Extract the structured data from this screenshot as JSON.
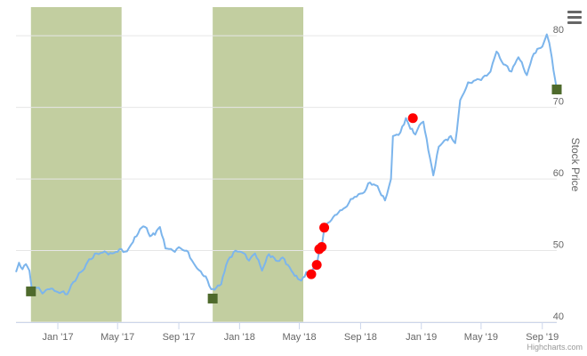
{
  "chart_data": {
    "type": "line",
    "title": "",
    "xlabel": "",
    "ylabel": "Stock Price",
    "yaxis_position": "right",
    "ylim": [
      40,
      84
    ],
    "y_ticks": [
      40,
      50,
      60,
      70,
      80
    ],
    "x_range": [
      "2016-10-09",
      "2019-09-30"
    ],
    "x_ticks": [
      {
        "date": "2017-01-01",
        "label": "Jan '17"
      },
      {
        "date": "2017-05-01",
        "label": "May '17"
      },
      {
        "date": "2017-09-01",
        "label": "Sep '17"
      },
      {
        "date": "2018-01-01",
        "label": "Jan '18"
      },
      {
        "date": "2018-05-01",
        "label": "May '18"
      },
      {
        "date": "2018-09-01",
        "label": "Sep '18"
      },
      {
        "date": "2019-01-01",
        "label": "Jan '19"
      },
      {
        "date": "2019-05-01",
        "label": "May '19"
      },
      {
        "date": "2019-09-01",
        "label": "Sep '19"
      }
    ],
    "grid": true,
    "shaded_periods": [
      {
        "from": "2016-11-08",
        "to": "2017-05-09"
      },
      {
        "from": "2017-11-08",
        "to": "2018-05-09"
      }
    ],
    "series": [
      {
        "points": [
          [
            "2016-10-09",
            47.0
          ],
          [
            "2016-10-15",
            48.3
          ],
          [
            "2016-10-22",
            47.4
          ],
          [
            "2016-10-29",
            48.1
          ],
          [
            "2016-11-05",
            47.2
          ],
          [
            "2016-11-10",
            44.5
          ],
          [
            "2016-11-20",
            44.8
          ],
          [
            "2016-12-01",
            44.0
          ],
          [
            "2016-12-15",
            44.6
          ],
          [
            "2017-01-01",
            44.2
          ],
          [
            "2017-01-20",
            43.9
          ],
          [
            "2017-02-01",
            45.6
          ],
          [
            "2017-02-20",
            47.2
          ],
          [
            "2017-03-05",
            48.8
          ],
          [
            "2017-03-20",
            49.6
          ],
          [
            "2017-04-05",
            49.9
          ],
          [
            "2017-04-20",
            49.6
          ],
          [
            "2017-05-05",
            50.2
          ],
          [
            "2017-05-20",
            49.9
          ],
          [
            "2017-06-01",
            51.2
          ],
          [
            "2017-06-15",
            53.0
          ],
          [
            "2017-06-25",
            53.3
          ],
          [
            "2017-07-05",
            52.0
          ],
          [
            "2017-07-15",
            52.2
          ],
          [
            "2017-07-25",
            53.3
          ],
          [
            "2017-08-05",
            50.3
          ],
          [
            "2017-08-20",
            50.0
          ],
          [
            "2017-09-05",
            50.3
          ],
          [
            "2017-09-20",
            49.8
          ],
          [
            "2017-10-01",
            48.2
          ],
          [
            "2017-10-15",
            47.1
          ],
          [
            "2017-10-25",
            46.4
          ],
          [
            "2017-11-05",
            44.6
          ],
          [
            "2017-11-15",
            44.8
          ],
          [
            "2017-11-25",
            45.3
          ],
          [
            "2017-12-05",
            48.0
          ],
          [
            "2017-12-20",
            49.8
          ],
          [
            "2018-01-05",
            49.8
          ],
          [
            "2018-01-20",
            48.6
          ],
          [
            "2018-02-01",
            49.6
          ],
          [
            "2018-02-15",
            47.2
          ],
          [
            "2018-03-01",
            49.5
          ],
          [
            "2018-03-15",
            48.6
          ],
          [
            "2018-04-01",
            48.8
          ],
          [
            "2018-04-15",
            47.2
          ],
          [
            "2018-04-25",
            46.5
          ],
          [
            "2018-05-05",
            45.8
          ],
          [
            "2018-05-15",
            47.0
          ],
          [
            "2018-05-25",
            46.9
          ],
          [
            "2018-06-05",
            48.0
          ],
          [
            "2018-06-10",
            50.0
          ],
          [
            "2018-06-15",
            50.5
          ],
          [
            "2018-06-20",
            53.0
          ],
          [
            "2018-07-01",
            54.0
          ],
          [
            "2018-07-15",
            55.0
          ],
          [
            "2018-08-01",
            56.0
          ],
          [
            "2018-08-20",
            57.5
          ],
          [
            "2018-09-05",
            58.0
          ],
          [
            "2018-09-20",
            59.5
          ],
          [
            "2018-10-05",
            59.0
          ],
          [
            "2018-10-20",
            57.0
          ],
          [
            "2018-11-01",
            60.0
          ],
          [
            "2018-11-05",
            66.0
          ],
          [
            "2018-11-20",
            66.5
          ],
          [
            "2018-12-01",
            68.5
          ],
          [
            "2018-12-10",
            67.0
          ],
          [
            "2018-12-20",
            66.2
          ],
          [
            "2019-01-01",
            67.8
          ],
          [
            "2019-01-05",
            68.0
          ],
          [
            "2019-01-15",
            64.0
          ],
          [
            "2019-01-25",
            60.5
          ],
          [
            "2019-02-05",
            64.5
          ],
          [
            "2019-02-20",
            65.5
          ],
          [
            "2019-03-01",
            66.0
          ],
          [
            "2019-03-10",
            65.0
          ],
          [
            "2019-03-20",
            71.0
          ],
          [
            "2019-04-05",
            73.5
          ],
          [
            "2019-04-20",
            73.8
          ],
          [
            "2019-05-05",
            74.2
          ],
          [
            "2019-05-20",
            75.0
          ],
          [
            "2019-06-01",
            77.8
          ],
          [
            "2019-06-15",
            76.0
          ],
          [
            "2019-07-01",
            75.0
          ],
          [
            "2019-07-15",
            77.0
          ],
          [
            "2019-08-01",
            74.5
          ],
          [
            "2019-08-15",
            77.5
          ],
          [
            "2019-09-01",
            78.5
          ],
          [
            "2019-09-10",
            80.2
          ],
          [
            "2019-09-15",
            79.0
          ],
          [
            "2019-09-20",
            77.0
          ],
          [
            "2019-09-30",
            72.5
          ]
        ]
      }
    ],
    "event_markers": {
      "red_circles": [
        [
          "2018-05-25",
          46.7
        ],
        [
          "2018-06-05",
          48.0
        ],
        [
          "2018-06-10",
          50.2
        ],
        [
          "2018-06-15",
          50.5
        ],
        [
          "2018-06-20",
          53.2
        ],
        [
          "2018-12-15",
          68.5
        ]
      ],
      "green_squares": [
        [
          "2016-11-08",
          44.3
        ],
        [
          "2017-11-08",
          43.3
        ],
        [
          "2019-09-30",
          72.5
        ]
      ]
    },
    "colors": {
      "line": "#7cb5ec",
      "band": "#c2cea0",
      "red_marker": "#ff0000",
      "green_marker": "#4e6a2c",
      "grid": "#e6e6e6"
    }
  },
  "credits": "Highcharts.com",
  "menu_icon": "hamburger-menu-icon"
}
